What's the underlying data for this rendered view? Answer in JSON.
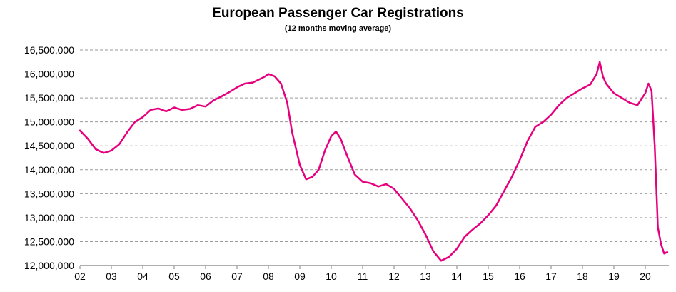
{
  "chart_data": {
    "type": "line",
    "title": "European Passenger Car Registrations",
    "subtitle": "(12 months moving average)",
    "xlabel": "",
    "ylabel": "",
    "ylim": [
      12000000,
      16500000
    ],
    "xlim": [
      2002,
      2020.75
    ],
    "grid": true,
    "line_color": "#e6007e",
    "yticks": [
      {
        "value": 12000000,
        "label": "12,000,000"
      },
      {
        "value": 12500000,
        "label": "12,500,000"
      },
      {
        "value": 13000000,
        "label": "13,000,000"
      },
      {
        "value": 13500000,
        "label": "13,500,000"
      },
      {
        "value": 14000000,
        "label": "14,000,000"
      },
      {
        "value": 14500000,
        "label": "14,500,000"
      },
      {
        "value": 15000000,
        "label": "15,000,000"
      },
      {
        "value": 15500000,
        "label": "15,500,000"
      },
      {
        "value": 16000000,
        "label": "16,000,000"
      },
      {
        "value": 16500000,
        "label": "16,500,000"
      }
    ],
    "xticks": [
      {
        "value": 2002,
        "label": "02"
      },
      {
        "value": 2003,
        "label": "03"
      },
      {
        "value": 2004,
        "label": "04"
      },
      {
        "value": 2005,
        "label": "05"
      },
      {
        "value": 2006,
        "label": "06"
      },
      {
        "value": 2007,
        "label": "07"
      },
      {
        "value": 2008,
        "label": "08"
      },
      {
        "value": 2009,
        "label": "09"
      },
      {
        "value": 2010,
        "label": "10"
      },
      {
        "value": 2011,
        "label": "11"
      },
      {
        "value": 2012,
        "label": "12"
      },
      {
        "value": 2013,
        "label": "13"
      },
      {
        "value": 2014,
        "label": "14"
      },
      {
        "value": 2015,
        "label": "15"
      },
      {
        "value": 2016,
        "label": "16"
      },
      {
        "value": 2017,
        "label": "17"
      },
      {
        "value": 2018,
        "label": "18"
      },
      {
        "value": 2019,
        "label": "19"
      },
      {
        "value": 2020,
        "label": "20"
      }
    ],
    "series": [
      {
        "x": [
          2002.0,
          2002.25,
          2002.5,
          2002.75,
          2003.0,
          2003.25,
          2003.5,
          2003.75,
          2004.0,
          2004.25,
          2004.5,
          2004.75,
          2005.0,
          2005.25,
          2005.5,
          2005.75,
          2006.0,
          2006.25,
          2006.5,
          2006.75,
          2007.0,
          2007.25,
          2007.5,
          2007.75,
          2007.9,
          2008.0,
          2008.2,
          2008.4,
          2008.6,
          2008.75,
          2009.0,
          2009.2,
          2009.4,
          2009.6,
          2009.8,
          2010.0,
          2010.15,
          2010.3,
          2010.5,
          2010.75,
          2011.0,
          2011.25,
          2011.5,
          2011.75,
          2012.0,
          2012.25,
          2012.5,
          2012.75,
          2013.0,
          2013.25,
          2013.5,
          2013.75,
          2014.0,
          2014.25,
          2014.5,
          2014.75,
          2015.0,
          2015.25,
          2015.5,
          2015.75,
          2016.0,
          2016.25,
          2016.5,
          2016.75,
          2017.0,
          2017.25,
          2017.5,
          2017.75,
          2018.0,
          2018.25,
          2018.45,
          2018.55,
          2018.65,
          2018.75,
          2019.0,
          2019.25,
          2019.5,
          2019.75,
          2019.9,
          2020.0,
          2020.1,
          2020.2,
          2020.3,
          2020.4,
          2020.5,
          2020.6,
          2020.7
        ],
        "y": [
          14820000,
          14650000,
          14430000,
          14350000,
          14400000,
          14530000,
          14780000,
          15000000,
          15100000,
          15250000,
          15280000,
          15220000,
          15300000,
          15250000,
          15270000,
          15350000,
          15320000,
          15450000,
          15530000,
          15620000,
          15720000,
          15800000,
          15820000,
          15900000,
          15950000,
          16000000,
          15950000,
          15800000,
          15400000,
          14800000,
          14100000,
          13800000,
          13850000,
          14000000,
          14400000,
          14700000,
          14800000,
          14650000,
          14300000,
          13900000,
          13750000,
          13720000,
          13650000,
          13700000,
          13600000,
          13400000,
          13200000,
          12950000,
          12650000,
          12300000,
          12100000,
          12180000,
          12350000,
          12600000,
          12750000,
          12880000,
          13050000,
          13250000,
          13550000,
          13850000,
          14200000,
          14600000,
          14900000,
          15000000,
          15150000,
          15350000,
          15500000,
          15600000,
          15700000,
          15780000,
          16000000,
          16250000,
          15950000,
          15800000,
          15600000,
          15500000,
          15400000,
          15350000,
          15500000,
          15600000,
          15800000,
          15650000,
          14500000,
          12800000,
          12450000,
          12250000,
          12280000
        ]
      }
    ]
  }
}
